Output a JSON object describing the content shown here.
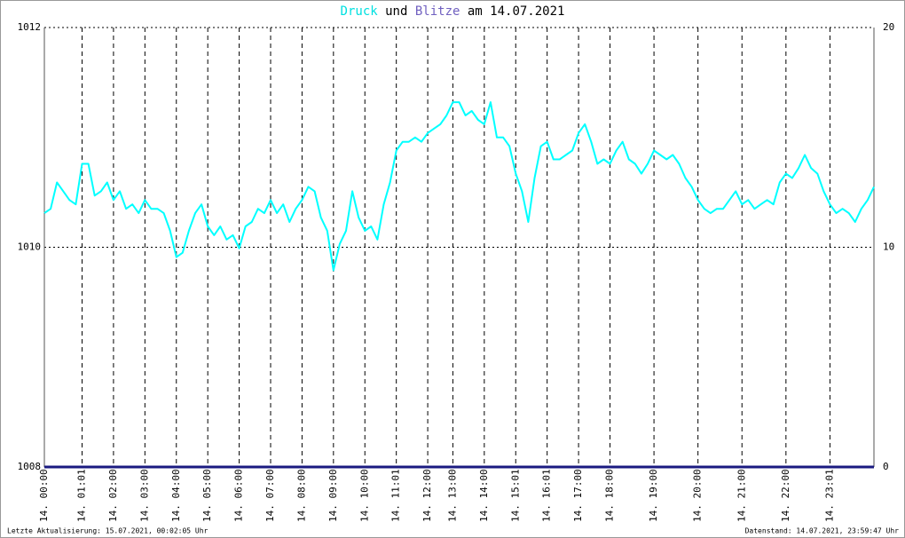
{
  "chart_data": {
    "type": "line",
    "title_joiner": "und",
    "title_date": "am 14.07.2021",
    "footer_left": "Letzte Aktualisierung: 15.07.2021, 00:02:05 Uhr",
    "footer_right": "Datenstand: 14.07.2021, 23:59:47 Uhr",
    "categories": [
      "14. 00:00",
      null,
      null,
      null,
      null,
      null,
      "14. 01:01",
      null,
      null,
      null,
      null,
      "14. 02:00",
      null,
      null,
      null,
      null,
      "14. 03:00",
      null,
      null,
      null,
      null,
      "14. 04:00",
      null,
      null,
      null,
      null,
      "14. 05:00",
      null,
      null,
      null,
      null,
      "14. 06:00",
      null,
      null,
      null,
      null,
      "14. 07:00",
      null,
      null,
      null,
      null,
      "14. 08:00",
      null,
      null,
      null,
      null,
      "14. 09:00",
      null,
      null,
      null,
      null,
      "14. 10:00",
      null,
      null,
      null,
      null,
      "14. 11:01",
      null,
      null,
      null,
      null,
      "14. 12:00",
      null,
      null,
      null,
      "14. 13:00",
      null,
      null,
      null,
      null,
      "14. 14:00",
      null,
      null,
      null,
      null,
      "14. 15:01",
      null,
      null,
      null,
      null,
      "14. 16:01",
      null,
      null,
      null,
      null,
      "14. 17:00",
      null,
      null,
      null,
      null,
      "14. 18:00",
      null,
      null,
      null,
      null,
      null,
      null,
      "14. 19:00",
      null,
      null,
      null,
      null,
      null,
      null,
      "14. 20:00",
      null,
      null,
      null,
      null,
      null,
      null,
      "14. 21:00",
      null,
      null,
      null,
      null,
      null,
      null,
      "14. 22:00",
      null,
      null,
      null,
      null,
      null,
      null,
      "14. 23:01",
      null,
      null,
      null,
      null,
      null,
      null,
      null
    ],
    "series": [
      {
        "name": "Druck",
        "color": "#00ffff",
        "axis": "y",
        "values": [
          1010.31,
          1010.35,
          1010.59,
          1010.51,
          1010.43,
          1010.39,
          1010.76,
          1010.76,
          1010.47,
          1010.51,
          1010.59,
          1010.43,
          1010.51,
          1010.35,
          1010.39,
          1010.31,
          1010.43,
          1010.35,
          1010.35,
          1010.31,
          1010.15,
          1009.91,
          1009.95,
          1010.15,
          1010.31,
          1010.39,
          1010.19,
          1010.11,
          1010.19,
          1010.07,
          1010.11,
          1009.99,
          1010.19,
          1010.23,
          1010.35,
          1010.31,
          1010.43,
          1010.31,
          1010.39,
          1010.23,
          1010.35,
          1010.43,
          1010.55,
          1010.51,
          1010.27,
          1010.15,
          1009.79,
          1010.03,
          1010.15,
          1010.51,
          1010.27,
          1010.15,
          1010.19,
          1010.07,
          1010.39,
          1010.59,
          1010.88,
          1010.96,
          1010.96,
          1011.0,
          1010.96,
          1011.04,
          1011.08,
          1011.12,
          1011.2,
          1011.32,
          1011.32,
          1011.2,
          1011.24,
          1011.16,
          1011.12,
          1011.32,
          1011.0,
          1011.0,
          1010.92,
          1010.67,
          1010.51,
          1010.23,
          1010.63,
          1010.92,
          1010.96,
          1010.8,
          1010.8,
          1010.84,
          1010.88,
          1011.04,
          1011.12,
          1010.96,
          1010.76,
          1010.8,
          1010.76,
          1010.88,
          1010.96,
          1010.8,
          1010.76,
          1010.67,
          1010.76,
          1010.88,
          1010.84,
          1010.8,
          1010.84,
          1010.76,
          1010.63,
          1010.55,
          1010.43,
          1010.35,
          1010.31,
          1010.35,
          1010.35,
          1010.43,
          1010.51,
          1010.39,
          1010.43,
          1010.35,
          1010.39,
          1010.43,
          1010.39,
          1010.59,
          1010.67,
          1010.63,
          1010.72,
          1010.84,
          1010.72,
          1010.67,
          1010.51,
          1010.39,
          1010.31,
          1010.35,
          1010.31,
          1010.23,
          1010.35,
          1010.43,
          1010.55
        ]
      },
      {
        "name": "Blitze",
        "color": "#1a1a80",
        "axis": "y2",
        "values": [
          0,
          0,
          0,
          0,
          0,
          0,
          0,
          0,
          0,
          0,
          0,
          0,
          0,
          0,
          0,
          0,
          0,
          0,
          0,
          0,
          0,
          0,
          0,
          0,
          0,
          0,
          0,
          0,
          0,
          0,
          0,
          0,
          0,
          0,
          0,
          0,
          0,
          0,
          0,
          0,
          0,
          0,
          0,
          0,
          0,
          0,
          0,
          0,
          0,
          0,
          0,
          0,
          0,
          0,
          0,
          0,
          0,
          0,
          0,
          0,
          0,
          0,
          0,
          0,
          0,
          0,
          0,
          0,
          0,
          0,
          0,
          0,
          0,
          0,
          0,
          0,
          0,
          0,
          0,
          0,
          0,
          0,
          0,
          0,
          0,
          0,
          0,
          0,
          0,
          0,
          0,
          0,
          0,
          0,
          0,
          0,
          0,
          0,
          0,
          0,
          0,
          0,
          0,
          0,
          0,
          0,
          0,
          0,
          0,
          0,
          0,
          0,
          0,
          0,
          0,
          0,
          0,
          0,
          0,
          0,
          0,
          0,
          0,
          0,
          0,
          0,
          0,
          0,
          0,
          0,
          0,
          0,
          0
        ]
      }
    ],
    "ylim": [
      1008,
      1012
    ],
    "yticks": [
      1008,
      1010,
      1012
    ],
    "y2lim": [
      0,
      20
    ],
    "y2ticks": [
      0,
      10,
      20
    ],
    "title_colors": [
      "#00e0e0",
      "#7060c0"
    ],
    "grid": true
  }
}
